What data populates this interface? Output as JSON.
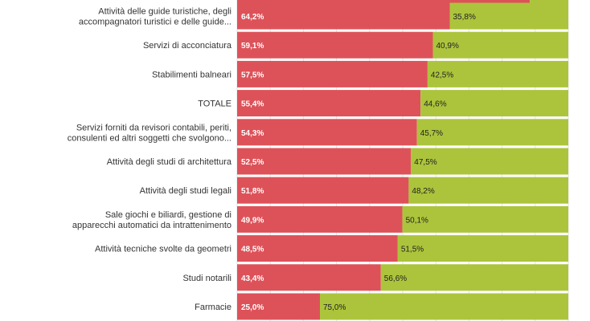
{
  "colors": {
    "series1": "#dd5259",
    "series2": "#acc43c",
    "grid": "#e2e2e2",
    "text": "#333333"
  },
  "chart_data": {
    "type": "bar",
    "orientation": "horizontal",
    "stacked": true,
    "grid": true,
    "xlim": [
      0,
      100
    ],
    "categories": [
      [
        "Attività delle guide turistiche, degli",
        "accompagnatori turistici e delle guide..."
      ],
      [
        "Servizi di acconciatura"
      ],
      [
        "Stabilimenti balneari"
      ],
      [
        "TOTALE"
      ],
      [
        "Servizi forniti da revisori contabili, periti,",
        "consulenti ed altri soggetti che svolgono..."
      ],
      [
        "Attività degli studi di architettura"
      ],
      [
        "Attività degli studi legali"
      ],
      [
        "Sale giochi e biliardi, gestione di",
        "apparecchi automatici da intrattenimento"
      ],
      [
        "Attività tecniche svolte da geometri"
      ],
      [
        "Studi notarili"
      ],
      [
        "Farmacie"
      ]
    ],
    "series": [
      {
        "values": [
          64.2,
          59.1,
          57.5,
          55.4,
          54.3,
          52.5,
          51.8,
          49.9,
          48.5,
          43.4,
          25.0
        ],
        "labels": [
          "64,2%",
          "59,1%",
          "57,5%",
          "55,4%",
          "54,3%",
          "52,5%",
          "51,8%",
          "49,9%",
          "48,5%",
          "43,4%",
          "25,0%"
        ]
      },
      {
        "values": [
          35.8,
          40.9,
          42.5,
          44.6,
          45.7,
          47.5,
          48.2,
          50.1,
          51.5,
          56.6,
          75.0
        ],
        "labels": [
          "35,8%",
          "40,9%",
          "42,5%",
          "44,6%",
          "45,7%",
          "47,5%",
          "48,2%",
          "50,1%",
          "51,5%",
          "56,6%",
          "75,0%"
        ]
      }
    ]
  }
}
